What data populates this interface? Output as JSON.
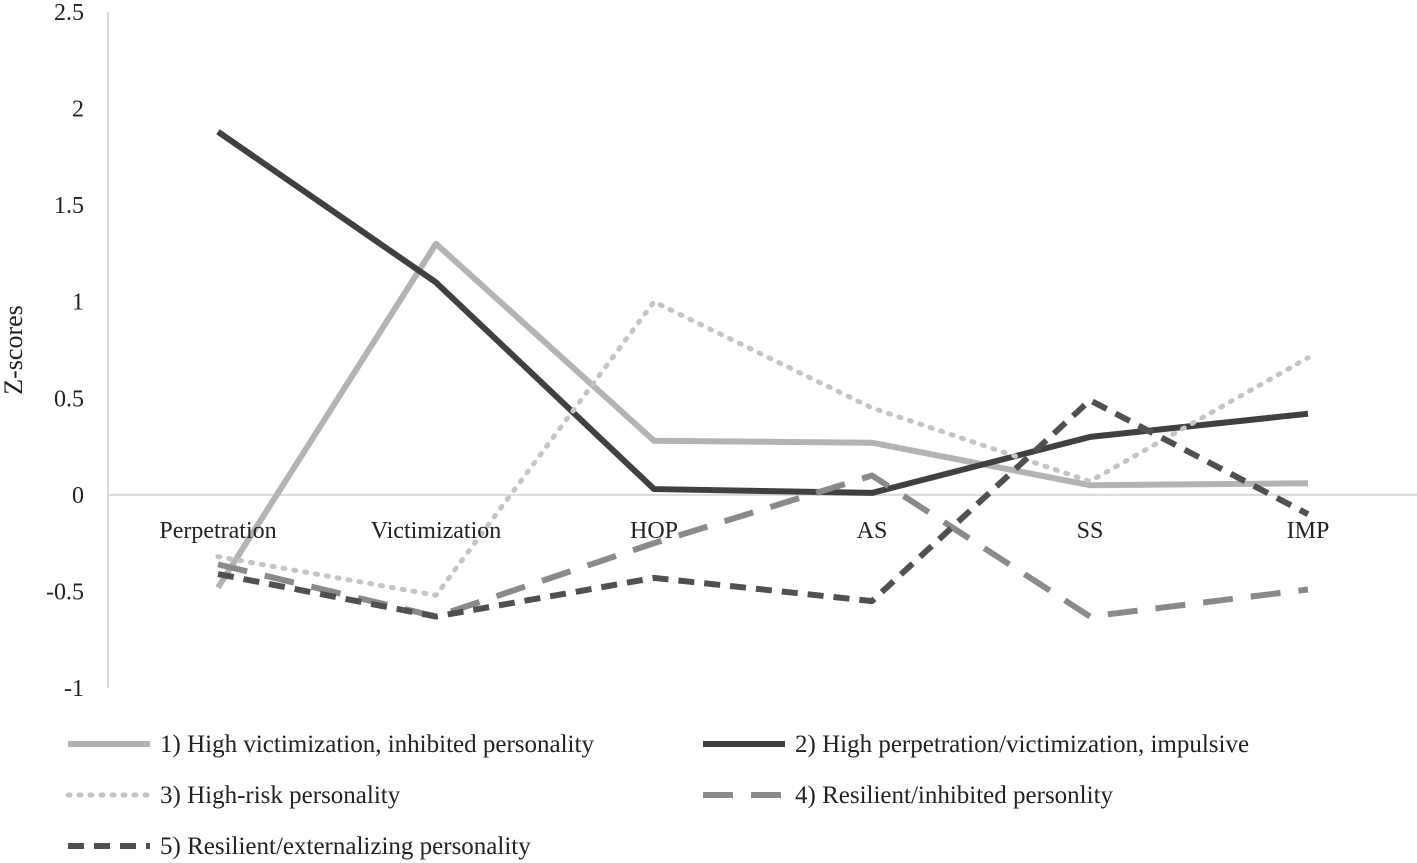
{
  "chart_data": {
    "type": "line",
    "title": "",
    "xlabel": "",
    "ylabel": "Z-scores",
    "ylim": [
      -1,
      2.5
    ],
    "yticks": [
      "2.5",
      "2",
      "1.5",
      "1",
      "0.5",
      "0",
      "-0.5",
      "-1"
    ],
    "ytick_values": [
      2.5,
      2,
      1.5,
      1,
      0.5,
      0,
      -0.5,
      -1
    ],
    "categories": [
      "Perpetration",
      "Victimization",
      "HOP",
      "AS",
      "SS",
      "IMP"
    ],
    "grid": false,
    "legend_position": "bottom",
    "series": [
      {
        "name": "1) High victimization, inhibited personality",
        "values": [
          -0.48,
          1.3,
          0.28,
          0.27,
          0.05,
          0.06
        ],
        "color": "#b3b3b3",
        "style": "solid"
      },
      {
        "name": "2) High perpetration/victimization, impulsive",
        "values": [
          1.88,
          1.1,
          0.03,
          0.01,
          0.3,
          0.42
        ],
        "color": "#404040",
        "style": "solid"
      },
      {
        "name": "3) High-risk personality",
        "values": [
          -0.32,
          -0.52,
          1.0,
          0.45,
          0.07,
          0.71
        ],
        "color": "#c4c4c4",
        "style": "dotted"
      },
      {
        "name": "4) Resilient/inhibited personlity",
        "values": [
          -0.36,
          -0.63,
          -0.25,
          0.1,
          -0.63,
          -0.49
        ],
        "color": "#8a8a8a",
        "style": "longdash"
      },
      {
        "name": "5) Resilient/externalizing personality",
        "values": [
          -0.41,
          -0.63,
          -0.43,
          -0.55,
          0.49,
          -0.1
        ],
        "color": "#505050",
        "style": "dash"
      }
    ]
  }
}
